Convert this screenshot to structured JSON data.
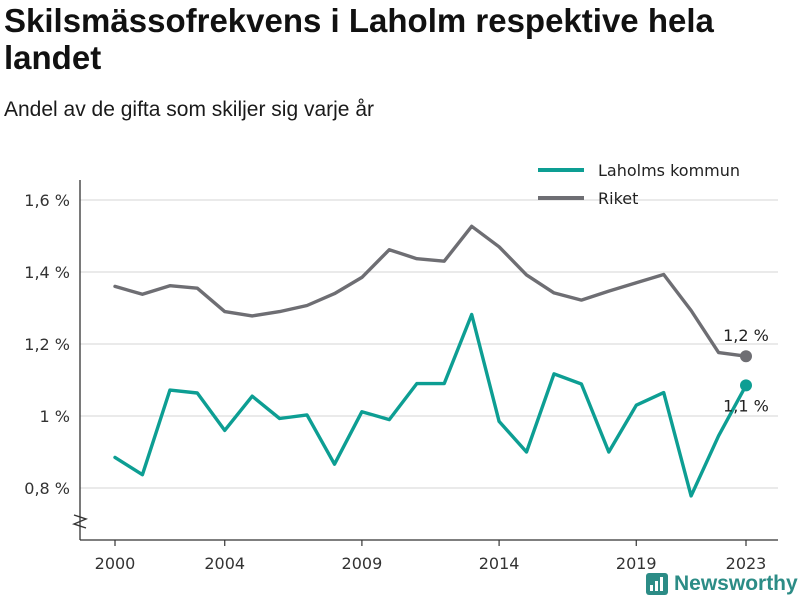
{
  "title": "Skilsmässofrekvens i Laholm respektive hela landet",
  "subtitle": "Andel av de gifta som skiljer sig varje år",
  "brand": {
    "name": "Newsworthy",
    "icon": "bar-chart-logo-icon",
    "color": "#2c8c86"
  },
  "chart_data": {
    "type": "line",
    "title": "Skilsmässofrekvens i Laholm respektive hela landet",
    "subtitle": "Andel av de gifta som skiljer sig varje år",
    "xlabel": "",
    "ylabel": "",
    "x": [
      2000,
      2001,
      2002,
      2003,
      2004,
      2005,
      2006,
      2007,
      2008,
      2009,
      2010,
      2011,
      2012,
      2013,
      2014,
      2015,
      2016,
      2017,
      2018,
      2019,
      2020,
      2021,
      2022,
      2023
    ],
    "xticks": [
      2000,
      2004,
      2009,
      2014,
      2019,
      2023
    ],
    "xtick_labels": [
      "2000",
      "2004",
      "2009",
      "2014",
      "2019",
      "2023"
    ],
    "yticks": [
      0.8,
      1.0,
      1.2,
      1.4,
      1.6
    ],
    "ytick_labels": [
      "0,8 %",
      "1 %",
      "1,2 %",
      "1,4 %",
      "1,6 %"
    ],
    "ylim": [
      0.66,
      1.62
    ],
    "y_axis_break": true,
    "grid": true,
    "legend": "top-right",
    "series": [
      {
        "name": "Laholms kommun",
        "color": "#0d9e93",
        "values": [
          0.885,
          0.837,
          1.072,
          1.064,
          0.96,
          1.055,
          0.993,
          1.003,
          0.866,
          1.012,
          0.99,
          1.09,
          1.09,
          1.282,
          0.985,
          0.9,
          1.117,
          1.089,
          0.9,
          1.03,
          1.065,
          0.778,
          0.945,
          1.085
        ],
        "end_label": "1,1 %"
      },
      {
        "name": "Riket",
        "color": "#6e6e73",
        "values": [
          1.36,
          1.338,
          1.362,
          1.355,
          1.29,
          1.278,
          1.29,
          1.307,
          1.34,
          1.385,
          1.462,
          1.437,
          1.43,
          1.527,
          1.47,
          1.392,
          1.342,
          1.322,
          1.347,
          1.37,
          1.393,
          1.293,
          1.176,
          1.166
        ],
        "end_label": "1,2 %"
      }
    ]
  }
}
